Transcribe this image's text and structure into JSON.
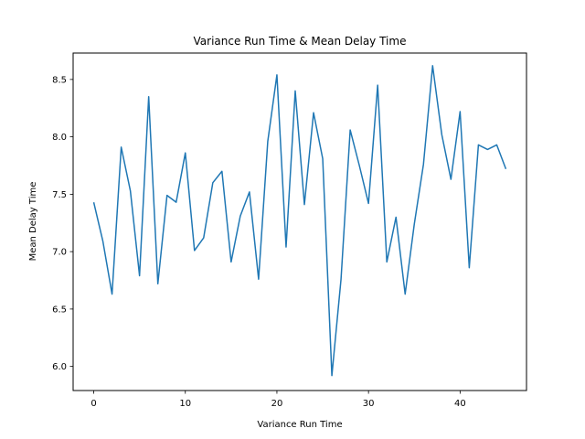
{
  "chart_data": {
    "type": "line",
    "title": "Variance Run Time & Mean Delay Time",
    "xlabel": "Variance Run Time",
    "ylabel": "Mean Delay Time",
    "xlim": [
      -2.25,
      47.25
    ],
    "ylim": [
      5.79,
      8.73
    ],
    "xticks": [
      0,
      10,
      20,
      30,
      40
    ],
    "xtick_labels": [
      "0",
      "10",
      "20",
      "30",
      "40"
    ],
    "yticks": [
      6.0,
      6.5,
      7.0,
      7.5,
      8.0,
      8.5
    ],
    "ytick_labels": [
      "6.0",
      "6.5",
      "7.0",
      "7.5",
      "8.0",
      "8.5"
    ],
    "grid": false,
    "line_color": "#1f77b4",
    "series": [
      {
        "x": [
          0,
          1,
          2,
          3,
          4,
          5,
          6,
          7,
          8,
          9,
          10,
          11,
          12,
          13,
          14,
          15,
          16,
          17,
          18,
          19,
          20,
          21,
          22,
          23,
          24,
          25,
          26,
          27,
          28,
          29,
          30,
          31,
          32,
          33,
          34,
          35,
          36,
          37,
          38,
          39,
          40,
          41,
          42,
          43,
          44,
          45
        ],
        "y": [
          7.43,
          7.09,
          6.63,
          7.91,
          7.53,
          6.79,
          8.35,
          6.72,
          7.49,
          7.43,
          7.86,
          7.01,
          7.12,
          7.6,
          7.7,
          6.91,
          7.31,
          7.52,
          6.76,
          7.96,
          8.54,
          7.04,
          8.4,
          7.41,
          8.21,
          7.81,
          5.92,
          6.76,
          8.06,
          7.75,
          7.42,
          8.45,
          6.91,
          7.3,
          6.63,
          7.24,
          7.76,
          8.62,
          8.02,
          7.63,
          8.22,
          6.86,
          7.93,
          7.89,
          7.93,
          7.72
        ]
      }
    ]
  }
}
